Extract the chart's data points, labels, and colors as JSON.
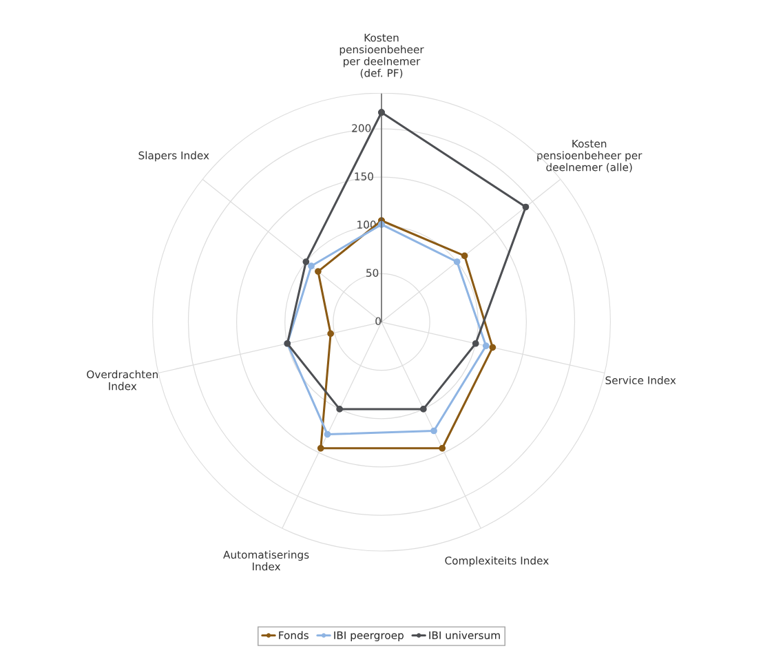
{
  "chart_data": {
    "type": "radar",
    "categories": [
      "Kosten\npensioenbeheer\nper deelnemer\n(def. PF)",
      "Kosten\npensioenbeheer per\ndeelnemer (alle)",
      "Service Index",
      "Complexiteits Index",
      "Automatiserings\nIndex",
      "Overdrachten\nIndex",
      "Slapers Index"
    ],
    "series": [
      {
        "name": "Fonds",
        "color": "#8b5a14",
        "values": [
          105,
          110,
          118,
          145,
          145,
          54,
          84
        ]
      },
      {
        "name": "IBI peergroep",
        "color": "#8eb4e3",
        "values": [
          101,
          100,
          111,
          125,
          129,
          100,
          93
        ]
      },
      {
        "name": "IBI universum",
        "color": "#4d4f53",
        "values": [
          217,
          191,
          100,
          100,
          100,
          100,
          100
        ]
      }
    ],
    "ylim": [
      0,
      237
    ],
    "yticks": [
      0,
      50,
      100,
      150,
      200
    ],
    "grid": true,
    "legend": "bottom",
    "marker": "circle",
    "line_style": "solid"
  }
}
